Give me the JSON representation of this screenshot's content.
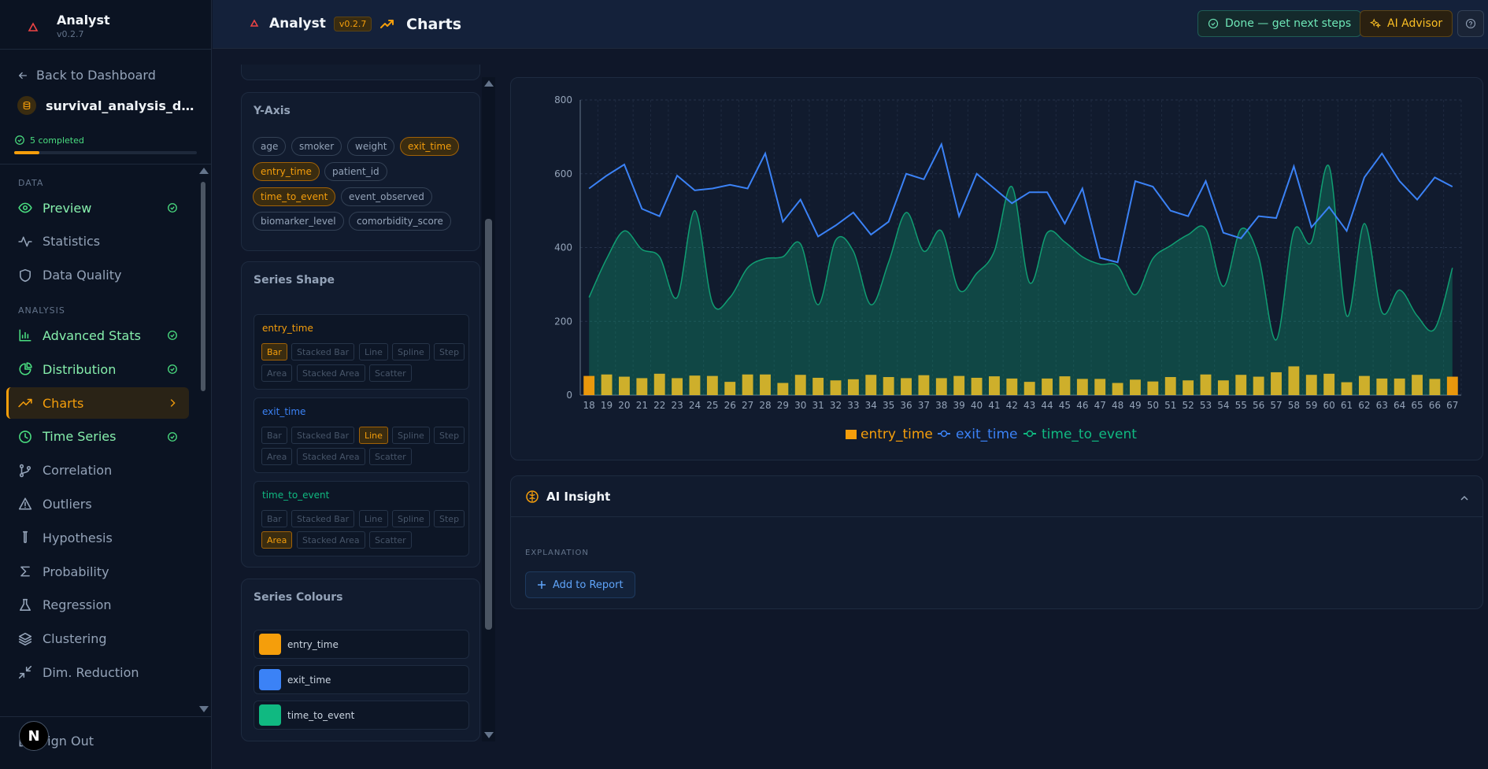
{
  "app": {
    "name": "Analyst",
    "version": "v0.2.7"
  },
  "sidebar": {
    "back_label": "Back to Dashboard",
    "dataset_name": "survival_analysis_data…",
    "progress_label": "5 completed",
    "progress_fraction": 0.14,
    "sections": [
      {
        "title": "DATA",
        "items": [
          {
            "label": "Preview",
            "icon": "eye-icon",
            "done": true
          },
          {
            "label": "Statistics",
            "icon": "activity-icon",
            "done": false
          },
          {
            "label": "Data Quality",
            "icon": "shield-icon",
            "done": false
          }
        ]
      },
      {
        "title": "ANALYSIS",
        "items": [
          {
            "label": "Advanced Stats",
            "icon": "bar-chart-icon",
            "done": true
          },
          {
            "label": "Distribution",
            "icon": "pie-chart-icon",
            "done": true
          },
          {
            "label": "Charts",
            "icon": "trending-up-icon",
            "done": false,
            "active": true
          },
          {
            "label": "Time Series",
            "icon": "clock-icon",
            "done": true
          },
          {
            "label": "Correlation",
            "icon": "git-branch-icon",
            "done": false
          },
          {
            "label": "Outliers",
            "icon": "alert-triangle-icon",
            "done": false
          },
          {
            "label": "Hypothesis",
            "icon": "test-tube-icon",
            "done": false
          },
          {
            "label": "Probability",
            "icon": "sigma-icon",
            "done": false
          },
          {
            "label": "Regression",
            "icon": "flask-icon",
            "done": false
          },
          {
            "label": "Clustering",
            "icon": "layers-icon",
            "done": false
          },
          {
            "label": "Dim. Reduction",
            "icon": "minimize-icon",
            "done": false
          }
        ]
      }
    ],
    "signout_label": "Sign Out",
    "badge_letter": "N"
  },
  "topbar": {
    "page_title": "Charts",
    "done_button": "Done — get next steps",
    "advisor_button": "AI Advisor"
  },
  "yaxis": {
    "title": "Y-Axis",
    "chips": [
      {
        "label": "age",
        "selected": false
      },
      {
        "label": "smoker",
        "selected": false
      },
      {
        "label": "weight",
        "selected": false
      },
      {
        "label": "exit_time",
        "selected": true
      },
      {
        "label": "entry_time",
        "selected": true
      },
      {
        "label": "patient_id",
        "selected": false
      },
      {
        "label": "time_to_event",
        "selected": true
      },
      {
        "label": "event_observed",
        "selected": false
      },
      {
        "label": "biomarker_level",
        "selected": false
      },
      {
        "label": "comorbidity_score",
        "selected": false
      }
    ]
  },
  "series_shape": {
    "title": "Series Shape",
    "options": [
      "Bar",
      "Stacked Bar",
      "Line",
      "Spline",
      "Step",
      "Area",
      "Stacked Area",
      "Scatter"
    ],
    "series": [
      {
        "name": "entry_time",
        "color": "#f59e0b",
        "selected": "Bar"
      },
      {
        "name": "exit_time",
        "color": "#3b82f6",
        "selected": "Line"
      },
      {
        "name": "time_to_event",
        "color": "#10b981",
        "selected": "Area"
      }
    ]
  },
  "series_colours": {
    "title": "Series Colours",
    "items": [
      {
        "name": "entry_time",
        "color": "#f59e0b"
      },
      {
        "name": "exit_time",
        "color": "#3b82f6"
      },
      {
        "name": "time_to_event",
        "color": "#10b981"
      }
    ]
  },
  "chart_data": {
    "type": "bar",
    "categories": [
      "18",
      "19",
      "20",
      "21",
      "22",
      "23",
      "24",
      "25",
      "26",
      "27",
      "28",
      "29",
      "30",
      "31",
      "32",
      "33",
      "34",
      "35",
      "36",
      "37",
      "38",
      "39",
      "40",
      "41",
      "42",
      "43",
      "44",
      "45",
      "46",
      "47",
      "48",
      "49",
      "50",
      "51",
      "52",
      "53",
      "54",
      "55",
      "56",
      "57",
      "58",
      "59",
      "60",
      "61",
      "62",
      "63",
      "64",
      "65",
      "66",
      "67"
    ],
    "ylim": [
      0,
      800
    ],
    "yticks": [
      0,
      200,
      400,
      600,
      800
    ],
    "grid": true,
    "legend_position": "bottom",
    "series": [
      {
        "name": "entry_time",
        "type": "bar",
        "color": "#f59e0b",
        "values": [
          52,
          56,
          50,
          46,
          58,
          46,
          53,
          52,
          36,
          56,
          56,
          33,
          55,
          47,
          40,
          43,
          55,
          49,
          46,
          54,
          46,
          52,
          47,
          51,
          45,
          36,
          45,
          51,
          44,
          44,
          33,
          42,
          37,
          49,
          40,
          56,
          40,
          55,
          50,
          62,
          78,
          55,
          58,
          35,
          52,
          45,
          45,
          55,
          44,
          50
        ]
      },
      {
        "name": "exit_time",
        "type": "line",
        "color": "#3b82f6",
        "values": [
          560,
          595,
          625,
          505,
          485,
          595,
          555,
          560,
          570,
          560,
          655,
          470,
          530,
          430,
          460,
          495,
          435,
          470,
          600,
          585,
          680,
          485,
          600,
          560,
          520,
          550,
          550,
          465,
          560,
          372,
          360,
          580,
          565,
          500,
          485,
          580,
          440,
          425,
          485,
          480,
          620,
          455,
          510,
          445,
          590,
          655,
          580,
          530,
          590,
          565
        ]
      },
      {
        "name": "time_to_event",
        "type": "area",
        "color": "#10b981",
        "values": [
          265,
          370,
          445,
          395,
          375,
          265,
          500,
          250,
          265,
          345,
          370,
          375,
          410,
          245,
          420,
          390,
          245,
          360,
          495,
          390,
          445,
          285,
          330,
          390,
          565,
          305,
          440,
          415,
          375,
          355,
          350,
          272,
          370,
          405,
          435,
          450,
          295,
          450,
          375,
          150,
          445,
          415,
          620,
          215,
          465,
          225,
          285,
          215,
          180,
          345
        ]
      }
    ]
  },
  "insight": {
    "title": "AI Insight",
    "explanation_label": "EXPLANATION",
    "add_report_label": "Add to Report"
  }
}
